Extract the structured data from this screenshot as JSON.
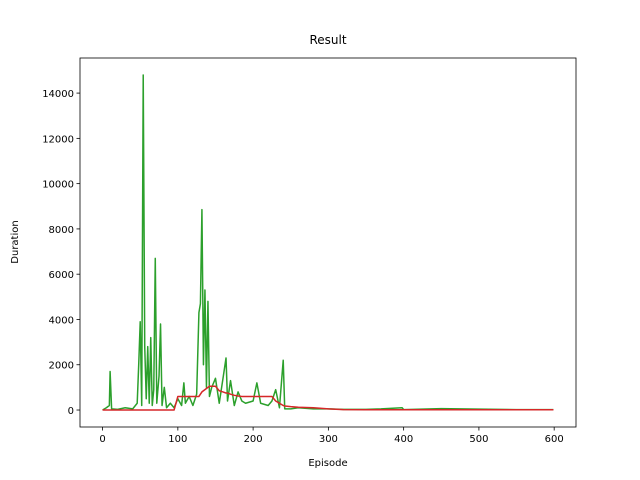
{
  "chart_data": {
    "type": "line",
    "title": "Result",
    "x_label": "Episode",
    "y_label": "Duration",
    "x": [
      0,
      5,
      9,
      10,
      12,
      20,
      30,
      40,
      46,
      48,
      50,
      52,
      54,
      56,
      58,
      60,
      62,
      64,
      66,
      68,
      70,
      72,
      75,
      77,
      79,
      82,
      85,
      90,
      95,
      100,
      105,
      108,
      110,
      115,
      120,
      125,
      128,
      130,
      132,
      134,
      136,
      138,
      140,
      142,
      145,
      150,
      155,
      160,
      164,
      166,
      170,
      175,
      180,
      185,
      190,
      200,
      205,
      210,
      220,
      225,
      230,
      235,
      240,
      242,
      250,
      260,
      280,
      300,
      320,
      350,
      370,
      398,
      400,
      450,
      500,
      550,
      599
    ],
    "series": [
      {
        "color": "#2ca02c",
        "values": [
          0,
          100,
          200,
          1700,
          50,
          30,
          100,
          50,
          300,
          2000,
          3900,
          200,
          14800,
          2800,
          500,
          2800,
          300,
          3200,
          200,
          900,
          6700,
          300,
          1500,
          3800,
          200,
          1000,
          100,
          300,
          100,
          500,
          200,
          1200,
          300,
          600,
          200,
          700,
          4300,
          4700,
          8850,
          2000,
          5300,
          1000,
          4800,
          600,
          1000,
          1400,
          300,
          1400,
          2300,
          400,
          1300,
          200,
          800,
          400,
          300,
          400,
          1200,
          300,
          200,
          400,
          900,
          100,
          2200,
          50,
          50,
          100,
          50,
          50,
          30,
          30,
          50,
          100,
          20,
          60,
          40,
          20,
          20
        ]
      },
      {
        "color": "#d62728",
        "values": [
          0,
          0,
          0,
          0,
          0,
          0,
          0,
          0,
          0,
          0,
          0,
          0,
          0,
          0,
          0,
          0,
          0,
          0,
          0,
          0,
          0,
          0,
          0,
          0,
          0,
          0,
          0,
          0,
          0,
          600,
          600,
          600,
          600,
          600,
          600,
          600,
          600,
          700,
          800,
          850,
          900,
          950,
          1000,
          1050,
          1050,
          1050,
          850,
          800,
          750,
          750,
          700,
          650,
          620,
          600,
          600,
          600,
          600,
          600,
          600,
          600,
          400,
          300,
          200,
          180,
          150,
          120,
          100,
          50,
          20,
          10,
          10,
          10,
          10,
          10,
          10,
          10,
          10
        ]
      }
    ],
    "xlim": [
      -30,
      629
    ],
    "ylim": [
      -750,
      15550
    ],
    "xticks": [
      0,
      100,
      200,
      300,
      400,
      500,
      600
    ],
    "yticks": [
      0,
      2000,
      4000,
      6000,
      8000,
      10000,
      12000,
      14000
    ]
  }
}
